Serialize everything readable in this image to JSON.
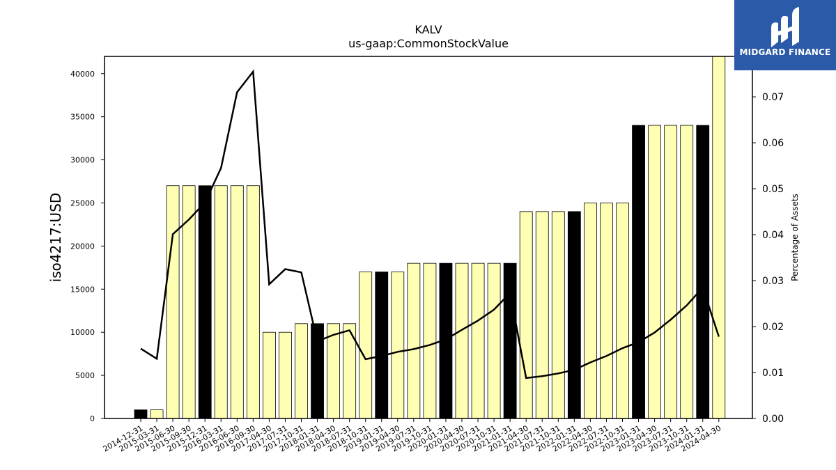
{
  "brand": {
    "name": "MIDGARD FINANCE",
    "logo_color": "#2a5aa8",
    "logo_icon": "midgard-logo-icon"
  },
  "chart_data": {
    "type": "bar",
    "title": "KALV",
    "subtitle": "us-gaap:CommonStockValue",
    "ylabel": "iso4217:USD",
    "y2label": "Percentage of Assets",
    "ylim": [
      0,
      42000
    ],
    "y2lim": [
      0,
      0.0788
    ],
    "yticks": [
      0,
      5000,
      10000,
      15000,
      20000,
      25000,
      30000,
      35000,
      40000
    ],
    "y2ticks": [
      0.0,
      0.01,
      0.02,
      0.03,
      0.04,
      0.05,
      0.06,
      0.07
    ],
    "y2tick_labels": [
      "0.00",
      "0.01",
      "0.02",
      "0.03",
      "0.04",
      "0.05",
      "0.06",
      "0.07"
    ],
    "grid": false,
    "colors": {
      "annual_bar": "#000000",
      "quarter_bar": "#ffffb3",
      "line": "#000000"
    },
    "categories": [
      "2014-12-31",
      "2015-03-31",
      "2015-06-30",
      "2015-09-30",
      "2015-12-31",
      "2016-03-31",
      "2016-06-30",
      "2016-09-30",
      "2017-04-30",
      "2017-07-31",
      "2017-10-31",
      "2018-01-31",
      "2018-04-30",
      "2018-07-31",
      "2018-10-31",
      "2019-01-31",
      "2019-04-30",
      "2019-07-31",
      "2019-10-31",
      "2020-01-31",
      "2020-04-30",
      "2020-07-31",
      "2020-10-31",
      "2021-01-31",
      "2021-04-30",
      "2021-07-31",
      "2021-10-31",
      "2022-01-31",
      "2022-04-30",
      "2022-07-31",
      "2022-10-31",
      "2023-01-31",
      "2023-04-30",
      "2023-07-31",
      "2023-10-31",
      "2024-01-31",
      "2024-04-30"
    ],
    "series": [
      {
        "kind": "bar",
        "axis": "left",
        "values": [
          1000,
          1000,
          27000,
          27000,
          27000,
          27000,
          27000,
          27000,
          10000,
          10000,
          11000,
          11000,
          11000,
          11000,
          17000,
          17000,
          17000,
          18000,
          18000,
          18000,
          18000,
          18000,
          18000,
          18000,
          24000,
          24000,
          24000,
          24000,
          25000,
          25000,
          25000,
          34000,
          34000,
          34000,
          34000,
          34000,
          42000
        ],
        "highlight": [
          true,
          false,
          false,
          false,
          true,
          false,
          false,
          false,
          false,
          false,
          false,
          true,
          false,
          false,
          false,
          true,
          false,
          false,
          false,
          true,
          false,
          false,
          false,
          true,
          false,
          false,
          false,
          true,
          false,
          false,
          false,
          true,
          false,
          false,
          false,
          true,
          false
        ]
      },
      {
        "kind": "line",
        "axis": "right",
        "values": [
          0.0152,
          0.013,
          0.0401,
          0.0433,
          0.047,
          0.0545,
          0.071,
          0.0755,
          0.0292,
          0.0325,
          0.0318,
          0.0168,
          0.0182,
          0.0192,
          0.0129,
          0.0136,
          0.0145,
          0.0151,
          0.016,
          0.0172,
          0.0193,
          0.0213,
          0.0237,
          0.0273,
          0.0088,
          0.0092,
          0.0098,
          0.0106,
          0.0122,
          0.0136,
          0.0153,
          0.0166,
          0.0187,
          0.0215,
          0.0246,
          0.0285,
          0.0178
        ]
      }
    ]
  }
}
